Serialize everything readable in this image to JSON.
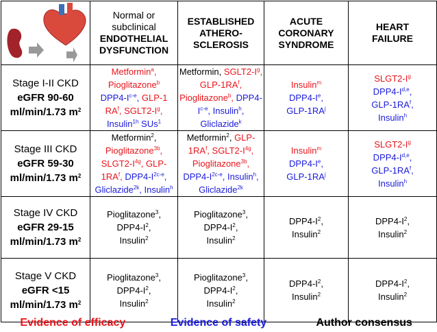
{
  "header": {
    "columns": [
      {
        "normal": [
          "Normal or",
          "subclinical"
        ],
        "bold": [
          "ENDOTHELIAL",
          "DYSFUNCTION"
        ]
      },
      {
        "bold": [
          "ESTABLISHED",
          "ATHERO-",
          "SCLEROSIS"
        ]
      },
      {
        "bold": [
          "ACUTE",
          "CORONARY",
          "SYNDROME"
        ]
      },
      {
        "bold": [
          "HEART",
          "FAILURE"
        ]
      }
    ]
  },
  "rows": [
    {
      "label": {
        "stage": "Stage I-II CKD",
        "egfr": "eGFR 90-60",
        "unit": "ml/min/1.73 m",
        "unit_sup": "2"
      },
      "cells": [
        [
          [
            {
              "t": "Metformin",
              "s": "a",
              "c": "#e8141b"
            },
            {
              "t": ",",
              "c": "#e8141b"
            }
          ],
          [
            {
              "t": "Pioglitazone",
              "s": "b",
              "c": "#e8141b"
            }
          ],
          [
            {
              "t": "DPP4-I",
              "s": "c-e",
              "c": "#1a1adb"
            },
            {
              "t": ",",
              "c": "#1a1adb"
            },
            {
              "t": " GLP-1",
              "c": "#e8141b"
            }
          ],
          [
            {
              "t": "RA",
              "s": "f",
              "c": "#e8141b"
            },
            {
              "t": ", SGLT2-I",
              "s": "g",
              "c": "#e8141b"
            },
            {
              "t": ",",
              "c": "#e8141b"
            }
          ],
          [
            {
              "t": "Insulin",
              "s": "1h",
              "c": "#1a1adb"
            },
            {
              "t": " SUs",
              "s": "1",
              "c": "#1a1adb"
            }
          ]
        ],
        [
          [
            {
              "t": "Metformin,"
            },
            {
              "t": " SGLT2-I",
              "s": "g",
              "c": "#e8141b"
            },
            {
              "t": ",",
              "c": "#e8141b"
            }
          ],
          [
            {
              "t": "GLP-1RA",
              "s": "f",
              "c": "#e8141b"
            },
            {
              "t": ",",
              "c": "#e8141b"
            }
          ],
          [
            {
              "t": "Pioglitazone",
              "s": "b",
              "c": "#e8141b"
            },
            {
              "t": ",",
              "c": "#e8141b"
            },
            {
              "t": " DPP4-",
              "c": "#1a1adb"
            }
          ],
          [
            {
              "t": "I",
              "s": "c-e",
              "c": "#1a1adb"
            },
            {
              "t": ", Insulin",
              "s": "h",
              "c": "#1a1adb"
            },
            {
              "t": ",",
              "c": "#1a1adb"
            }
          ],
          [
            {
              "t": "Gliclazide",
              "s": "k",
              "c": "#1a1adb"
            }
          ]
        ],
        [
          [
            {
              "t": "Insulin",
              "s": "m",
              "c": "#e8141b"
            }
          ],
          [
            {
              "t": "DPP4-I",
              "s": "e",
              "c": "#1a1adb"
            },
            {
              "t": ",",
              "c": "#1a1adb"
            }
          ],
          [
            {
              "t": "GLP-1RA",
              "s": "j",
              "c": "#1a1adb"
            }
          ]
        ],
        [
          [
            {
              "t": "SLGT2-I",
              "s": "g",
              "c": "#e8141b"
            }
          ],
          [
            {
              "t": "DPP4-I",
              "s": "d,e",
              "c": "#1a1adb"
            },
            {
              "t": ",",
              "c": "#1a1adb"
            }
          ],
          [
            {
              "t": "GLP-1RA",
              "s": "f",
              "c": "#1a1adb"
            },
            {
              "t": ",",
              "c": "#1a1adb"
            }
          ],
          [
            {
              "t": "Insulin",
              "s": "h",
              "c": "#1a1adb"
            }
          ]
        ]
      ]
    },
    {
      "label": {
        "stage": "Stage III CKD",
        "egfr": "eGFR 59-30",
        "unit": "ml/min/1.73 m",
        "unit_sup": "2"
      },
      "cells": [
        [
          [
            {
              "t": "Metformin",
              "s": "2"
            },
            {
              "t": ","
            }
          ],
          [
            {
              "t": "Pioglitazone",
              "s": "3b",
              "c": "#e8141b"
            },
            {
              "t": ",",
              "c": "#e8141b"
            }
          ],
          [
            {
              "t": "SLGT2-I",
              "s": "4g",
              "c": "#e8141b"
            },
            {
              "t": ", GLP-",
              "c": "#e8141b"
            }
          ],
          [
            {
              "t": "1RA",
              "s": "f",
              "c": "#e8141b"
            },
            {
              "t": ",",
              "c": "#e8141b"
            },
            {
              "t": " DPP4-I",
              "s": "2c-e",
              "c": "#1a1adb"
            },
            {
              "t": ",",
              "c": "#1a1adb"
            }
          ],
          [
            {
              "t": "Gliclazide",
              "s": "2k",
              "c": "#1a1adb"
            },
            {
              "t": ", Insulin",
              "s": "h",
              "c": "#1a1adb"
            }
          ]
        ],
        [
          [
            {
              "t": "Metformin",
              "s": "2"
            },
            {
              "t": ","
            },
            {
              "t": " GLP-",
              "c": "#e8141b"
            }
          ],
          [
            {
              "t": "1RA",
              "s": "f",
              "c": "#e8141b"
            },
            {
              "t": ", SGLT2-I",
              "s": "4g",
              "c": "#e8141b"
            },
            {
              "t": ",",
              "c": "#e8141b"
            }
          ],
          [
            {
              "t": "Pioglitazone",
              "s": "3b",
              "c": "#e8141b"
            },
            {
              "t": ",",
              "c": "#e8141b"
            }
          ],
          [
            {
              "t": "DPP4-I",
              "s": "2c-e",
              "c": "#1a1adb"
            },
            {
              "t": ", Insulin",
              "s": "h",
              "c": "#1a1adb"
            },
            {
              "t": ",",
              "c": "#1a1adb"
            }
          ],
          [
            {
              "t": "Gliclazide",
              "s": "2k",
              "c": "#1a1adb"
            }
          ]
        ],
        [
          [
            {
              "t": "Insulin",
              "s": "m",
              "c": "#e8141b"
            }
          ],
          [
            {
              "t": "DPP4-I",
              "s": "e",
              "c": "#1a1adb"
            },
            {
              "t": ",",
              "c": "#1a1adb"
            }
          ],
          [
            {
              "t": "GLP-1RA",
              "s": "j",
              "c": "#1a1adb"
            }
          ]
        ],
        [
          [
            {
              "t": "SLGT2-I",
              "s": "g",
              "c": "#e8141b"
            }
          ],
          [
            {
              "t": "DPP4-I",
              "s": "d,e",
              "c": "#1a1adb"
            },
            {
              "t": ",",
              "c": "#1a1adb"
            }
          ],
          [
            {
              "t": "GLP-1RA",
              "s": "f",
              "c": "#1a1adb"
            },
            {
              "t": ",",
              "c": "#1a1adb"
            }
          ],
          [
            {
              "t": "Insulin",
              "s": "h",
              "c": "#1a1adb"
            }
          ]
        ]
      ]
    },
    {
      "label": {
        "stage": "Stage IV CKD",
        "egfr": "eGFR 29-15",
        "unit": "ml/min/1.73 m",
        "unit_sup": "2"
      },
      "cells": [
        [
          [
            {
              "t": "Pioglitazone",
              "s": "3"
            },
            {
              "t": ","
            }
          ],
          [
            {
              "t": "DPP4-I",
              "s": "2"
            },
            {
              "t": ","
            }
          ],
          [
            {
              "t": "Insulin",
              "s": "2"
            }
          ]
        ],
        [
          [
            {
              "t": "Pioglitazone",
              "s": "3"
            },
            {
              "t": ","
            }
          ],
          [
            {
              "t": "DPP4-I",
              "s": "2"
            },
            {
              "t": ","
            }
          ],
          [
            {
              "t": "Insulin",
              "s": "2"
            }
          ]
        ],
        [
          [
            {
              "t": "DPP4-I",
              "s": "2"
            },
            {
              "t": ","
            }
          ],
          [
            {
              "t": "Insulin",
              "s": "2"
            }
          ]
        ],
        [
          [
            {
              "t": "DPP4-I",
              "s": "2"
            },
            {
              "t": ","
            }
          ],
          [
            {
              "t": "Insulin",
              "s": "2"
            }
          ]
        ]
      ]
    },
    {
      "label": {
        "stage": "Stage V CKD",
        "egfr": "eGFR <15",
        "unit": "ml/min/1.73 m",
        "unit_sup": "2"
      },
      "cells": [
        [
          [
            {
              "t": "Pioglitazone",
              "s": "3"
            },
            {
              "t": ","
            }
          ],
          [
            {
              "t": "DPP4-I",
              "s": "2"
            },
            {
              "t": ","
            }
          ],
          [
            {
              "t": "Insulin",
              "s": "2"
            }
          ]
        ],
        [
          [
            {
              "t": "Pioglitazone",
              "s": "3"
            },
            {
              "t": ","
            }
          ],
          [
            {
              "t": "DPP4-I",
              "s": "2"
            },
            {
              "t": ","
            }
          ],
          [
            {
              "t": "Insulin",
              "s": "2"
            }
          ]
        ],
        [
          [
            {
              "t": "DPP4-I",
              "s": "2"
            },
            {
              "t": ","
            }
          ],
          [
            {
              "t": "Insulin",
              "s": "2"
            }
          ]
        ],
        [
          [
            {
              "t": "DPP4-I",
              "s": "2"
            },
            {
              "t": ","
            }
          ],
          [
            {
              "t": "Insulin",
              "s": "2"
            }
          ]
        ]
      ]
    }
  ],
  "legend": [
    {
      "text": "Evidence of efficacy",
      "color": "#e8141b"
    },
    {
      "text": "Evidence of safety",
      "color": "#1a1adb"
    },
    {
      "text": "Author consensus",
      "color": "#000000"
    }
  ]
}
